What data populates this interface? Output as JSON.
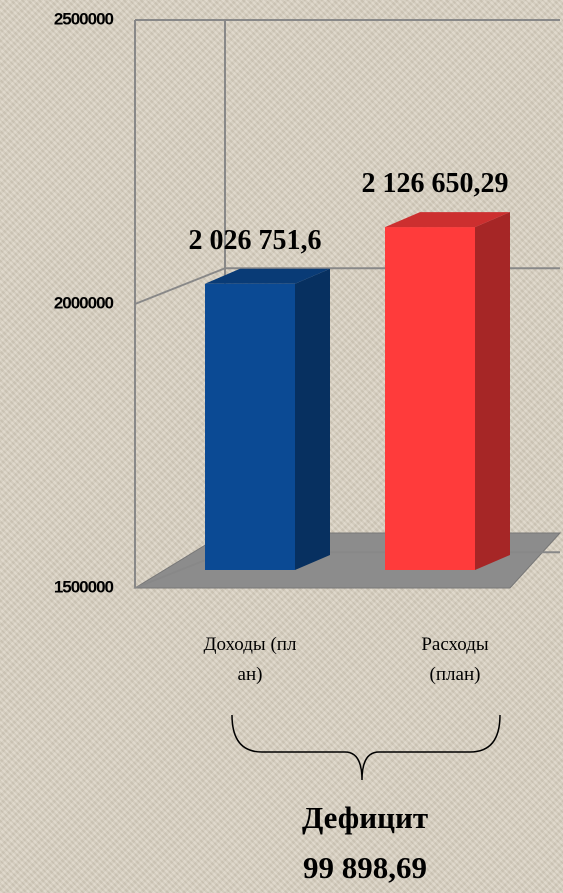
{
  "chart_data": {
    "type": "bar",
    "categories": [
      "Доходы (план)",
      "Расходы (план)"
    ],
    "values": [
      2026751.6,
      2126650.29
    ],
    "value_labels": [
      "2 026 751,6",
      "2 126 650,29"
    ],
    "series_colors": [
      "#0b4a94",
      "#ff3b3b"
    ],
    "ylim": [
      1500000,
      2500000
    ],
    "yticks": [
      1500000,
      2000000,
      2500000
    ],
    "grid": true,
    "annotations": [
      "Дефицит",
      "99 898,69"
    ]
  }
}
